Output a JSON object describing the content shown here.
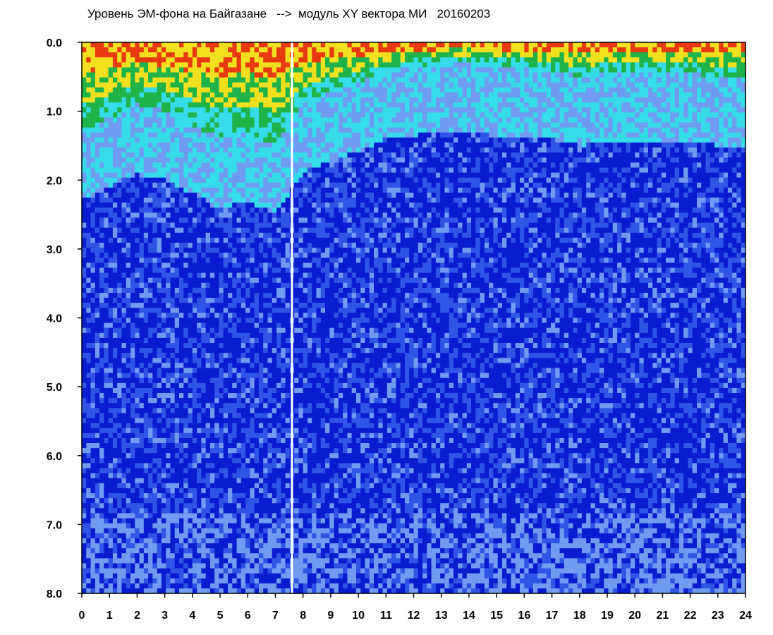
{
  "chart_data": {
    "type": "heatmap",
    "title": "Уровень ЭМ-фона на Байгазане   -->  модуль XY вектора МИ   20160203",
    "xlabel": "",
    "ylabel": "",
    "x_ticks": [
      "0",
      "1",
      "2",
      "3",
      "4",
      "5",
      "6",
      "7",
      "8",
      "9",
      "10",
      "11",
      "12",
      "13",
      "14",
      "15",
      "16",
      "17",
      "18",
      "19",
      "20",
      "21",
      "22",
      "23",
      "24"
    ],
    "y_ticks": [
      "0.0",
      "1.0",
      "2.0",
      "3.0",
      "4.0",
      "5.0",
      "6.0",
      "7.0",
      "8.0"
    ],
    "xlim": [
      0,
      24
    ],
    "ylim": [
      0,
      8
    ],
    "y_inverted": true,
    "colorscale": [
      "#0a1ccf",
      "#2f55e6",
      "#6f9bf0",
      "#36dcea",
      "#1fb34a",
      "#f0e020",
      "#e83a10"
    ],
    "background": "#ffffff",
    "white_gap_hours": [
      7.6
    ],
    "surface_activity_depth_by_hour": [
      {
        "x": 0,
        "depth": 1.3
      },
      {
        "x": 1,
        "depth": 1.1
      },
      {
        "x": 2,
        "depth": 0.9
      },
      {
        "x": 3,
        "depth": 1.0
      },
      {
        "x": 4,
        "depth": 1.2
      },
      {
        "x": 5,
        "depth": 1.4
      },
      {
        "x": 6,
        "depth": 1.3
      },
      {
        "x": 7,
        "depth": 1.5
      },
      {
        "x": 8,
        "depth": 0.9
      },
      {
        "x": 9,
        "depth": 0.7
      },
      {
        "x": 10,
        "depth": 0.6
      },
      {
        "x": 11,
        "depth": 0.4
      },
      {
        "x": 12,
        "depth": 0.35
      },
      {
        "x": 13,
        "depth": 0.3
      },
      {
        "x": 14,
        "depth": 0.3
      },
      {
        "x": 15,
        "depth": 0.35
      },
      {
        "x": 16,
        "depth": 0.35
      },
      {
        "x": 17,
        "depth": 0.4
      },
      {
        "x": 18,
        "depth": 0.5
      },
      {
        "x": 19,
        "depth": 0.45
      },
      {
        "x": 20,
        "depth": 0.45
      },
      {
        "x": 21,
        "depth": 0.45
      },
      {
        "x": 22,
        "depth": 0.45
      },
      {
        "x": 23,
        "depth": 0.5
      },
      {
        "x": 24,
        "depth": 0.5
      }
    ]
  }
}
